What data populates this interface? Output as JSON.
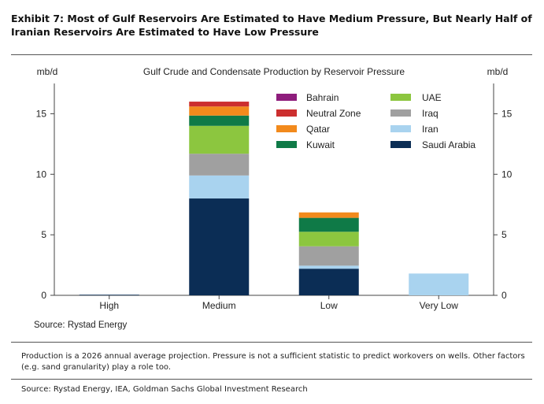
{
  "exhibit": {
    "title": "Exhibit 7: Most of Gulf Reservoirs Are Estimated to Have Medium Pressure, But Nearly Half of Iranian Reservoirs Are Estimated to Have Low Pressure",
    "note": "Production is a 2026 annual average projection. Pressure is not a sufficient statistic to predict workovers on wells. Other factors (e.g. sand granularity) play a role too.",
    "source": "Source: Rystad Energy, IEA, Goldman Sachs Global Investment Research"
  },
  "chart_data": {
    "type": "bar",
    "stacked": true,
    "title": "Gulf Crude and Condensate Production by Reservoir Pressure",
    "ylabel_left": "mb/d",
    "ylabel_right": "mb/d",
    "ylim": [
      0,
      17.5
    ],
    "yticks": [
      0,
      5,
      10,
      15
    ],
    "categories": [
      "High",
      "Medium",
      "Low",
      "Very Low"
    ],
    "series": [
      {
        "name": "Saudi Arabia",
        "color": "#0b2d55",
        "values": [
          0.05,
          8.0,
          2.2,
          0
        ]
      },
      {
        "name": "Iran",
        "color": "#a9d3ef",
        "values": [
          0,
          1.9,
          0.25,
          1.8
        ]
      },
      {
        "name": "Iraq",
        "color": "#a0a0a0",
        "values": [
          0,
          1.8,
          1.6,
          0
        ]
      },
      {
        "name": "Kuwait",
        "color": "#0f7a47",
        "values": [
          0,
          0,
          0,
          0
        ]
      },
      {
        "name": "UAE",
        "color": "#8cc63f",
        "values": [
          0,
          2.3,
          1.2,
          0
        ]
      },
      {
        "name": "Kuwait-upper",
        "color": "#0f7a47",
        "values": [
          0,
          0.85,
          1.15,
          0
        ]
      },
      {
        "name": "Qatar",
        "color": "#f28a1c",
        "values": [
          0,
          0.75,
          0.45,
          0
        ]
      },
      {
        "name": "Neutral Zone",
        "color": "#cc2f2f",
        "values": [
          0,
          0.4,
          0,
          0
        ]
      },
      {
        "name": "Bahrain",
        "color": "#8e1d7c",
        "values": [
          0,
          0,
          0,
          0
        ]
      }
    ],
    "legend": {
      "placement": "top-right",
      "left_column": [
        {
          "name": "Bahrain",
          "color": "#8e1d7c"
        },
        {
          "name": "Neutral Zone",
          "color": "#cc2f2f"
        },
        {
          "name": "Qatar",
          "color": "#f28a1c"
        },
        {
          "name": "Kuwait",
          "color": "#0f7a47"
        }
      ],
      "right_column": [
        {
          "name": "UAE",
          "color": "#8cc63f"
        },
        {
          "name": "Iraq",
          "color": "#a0a0a0"
        },
        {
          "name": "Iran",
          "color": "#a9d3ef"
        },
        {
          "name": "Saudi Arabia",
          "color": "#0b2d55"
        }
      ]
    },
    "source": "Source: Rystad Energy",
    "grid": false
  }
}
